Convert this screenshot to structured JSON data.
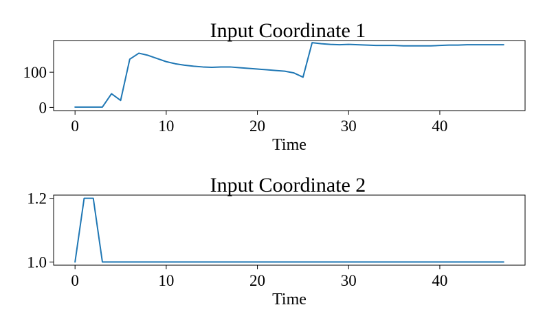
{
  "chart_data": [
    {
      "type": "line",
      "title": "Input Coordinate 1",
      "xlabel": "Time",
      "ylabel": "",
      "xlim": [
        -2.35,
        49.35
      ],
      "ylim": [
        -9,
        190
      ],
      "xticks": [
        0,
        10,
        20,
        30,
        40
      ],
      "xtick_labels": [
        "0",
        "10",
        "20",
        "30",
        "40"
      ],
      "yticks": [
        0,
        100
      ],
      "ytick_labels": [
        "0",
        "100"
      ],
      "grid": false,
      "legend": "none",
      "line_color": "#1f77b4",
      "x": [
        0,
        1,
        2,
        3,
        4,
        5,
        6,
        7,
        8,
        9,
        10,
        11,
        12,
        13,
        14,
        15,
        16,
        17,
        18,
        19,
        20,
        21,
        22,
        23,
        24,
        25,
        26,
        27,
        28,
        29,
        30,
        31,
        32,
        33,
        34,
        35,
        36,
        37,
        38,
        39,
        40,
        41,
        42,
        43,
        44,
        45,
        46,
        47
      ],
      "series": [
        {
          "values": [
            1,
            1,
            1,
            1,
            39,
            20,
            137,
            154,
            148,
            139,
            130,
            124,
            120,
            117,
            115,
            114,
            115,
            115,
            113,
            111,
            109,
            107,
            105,
            103,
            98,
            86,
            184,
            181,
            179,
            178,
            179,
            178,
            177,
            176,
            176,
            176,
            175,
            175,
            175,
            175,
            176,
            177,
            177,
            178,
            178,
            178,
            178,
            178
          ]
        }
      ]
    },
    {
      "type": "line",
      "title": "Input Coordinate 2",
      "xlabel": "Time",
      "ylabel": "",
      "xlim": [
        -2.35,
        49.35
      ],
      "ylim": [
        0.99,
        1.21
      ],
      "xticks": [
        0,
        10,
        20,
        30,
        40
      ],
      "xtick_labels": [
        "0",
        "10",
        "20",
        "30",
        "40"
      ],
      "yticks": [
        1.0,
        1.2
      ],
      "ytick_labels": [
        "1.0",
        "1.2"
      ],
      "grid": false,
      "legend": "none",
      "line_color": "#1f77b4",
      "x": [
        0,
        1,
        2,
        3,
        4,
        5,
        6,
        7,
        8,
        9,
        10,
        11,
        12,
        13,
        14,
        15,
        16,
        17,
        18,
        19,
        20,
        21,
        22,
        23,
        24,
        25,
        26,
        27,
        28,
        29,
        30,
        31,
        32,
        33,
        34,
        35,
        36,
        37,
        38,
        39,
        40,
        41,
        42,
        43,
        44,
        45,
        46,
        47
      ],
      "series": [
        {
          "values": [
            1.0,
            1.2,
            1.2,
            1.0,
            1.0,
            1.0,
            1.0,
            1.0,
            1.0,
            1.0,
            1.0,
            1.0,
            1.0,
            1.0,
            1.0,
            1.0,
            1.0,
            1.0,
            1.0,
            1.0,
            1.0,
            1.0,
            1.0,
            1.0,
            1.0,
            1.0,
            1.0,
            1.0,
            1.0,
            1.0,
            1.0,
            1.0,
            1.0,
            1.0,
            1.0,
            1.0,
            1.0,
            1.0,
            1.0,
            1.0,
            1.0,
            1.0,
            1.0,
            1.0,
            1.0,
            1.0,
            1.0,
            1.0
          ]
        }
      ]
    }
  ]
}
